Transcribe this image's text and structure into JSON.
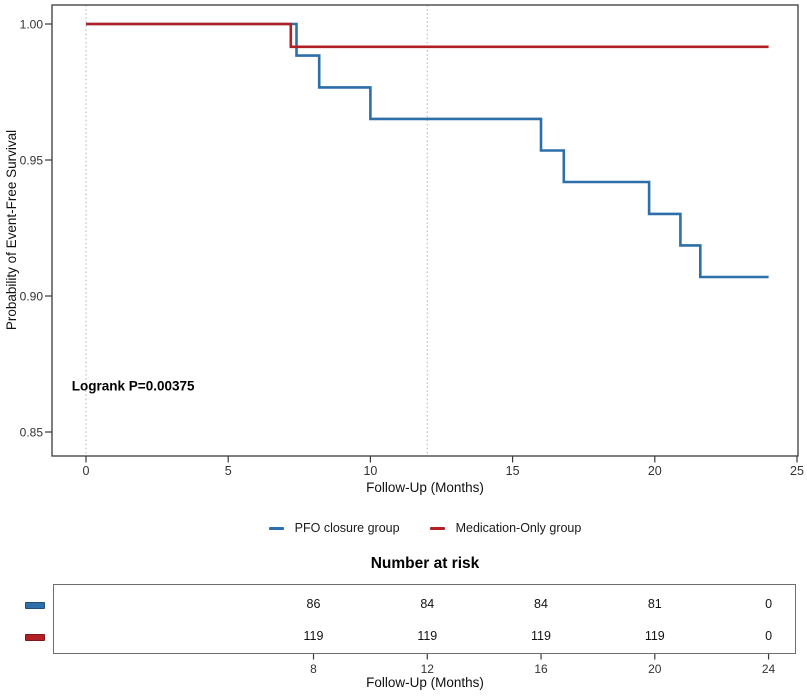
{
  "chart_data": {
    "type": "line",
    "subtype": "kaplan-meier-step",
    "title": "",
    "x_axis": {
      "title": "Follow-Up (Months)",
      "ticks": [
        0,
        5,
        10,
        15,
        20,
        25
      ],
      "range": [
        -1.2,
        25
      ]
    },
    "y_axis": {
      "title": "Probability of Event-Free Survival",
      "tick_labels": [
        "1.00",
        "0.95",
        "0.90",
        "0.85"
      ],
      "tick_values": [
        1.0,
        0.95,
        0.9,
        0.85
      ],
      "range": [
        0.843,
        1.006
      ]
    },
    "grid": false,
    "legend_position": "bottom",
    "reference_lines_x": [
      0,
      12
    ],
    "annotation": {
      "text": "Logrank P=0.00375",
      "t": -0.5,
      "s": 0.867
    },
    "series": [
      {
        "name": "PFO closure group",
        "color": "#2D6FA8",
        "steps": [
          [
            0,
            1.0
          ],
          [
            7.4,
            1.0
          ],
          [
            7.4,
            0.9884
          ],
          [
            8.2,
            0.9884
          ],
          [
            8.2,
            0.9767
          ],
          [
            10,
            0.9767
          ],
          [
            10,
            0.9651
          ],
          [
            16,
            0.9651
          ],
          [
            16,
            0.9535
          ],
          [
            16.8,
            0.9535
          ],
          [
            16.8,
            0.9419
          ],
          [
            19.8,
            0.9419
          ],
          [
            19.8,
            0.9302
          ],
          [
            20.9,
            0.9302
          ],
          [
            20.9,
            0.9186
          ],
          [
            21.6,
            0.9186
          ],
          [
            21.6,
            0.907
          ],
          [
            24,
            0.907
          ]
        ]
      },
      {
        "name": "Medication-Only group",
        "color": "#B22025",
        "steps": [
          [
            0,
            1.0
          ],
          [
            7.2,
            1.0
          ],
          [
            7.2,
            0.9916
          ],
          [
            24,
            0.9916
          ]
        ]
      }
    ]
  },
  "legend": {
    "items": [
      {
        "label": "PFO closure group",
        "color": "#2D6FA8"
      },
      {
        "label": "Medication-Only group",
        "color": "#B22025"
      }
    ]
  },
  "risk_table": {
    "title": "Number at risk",
    "time_points": [
      8,
      12,
      16,
      20,
      24
    ],
    "rows": [
      {
        "group": "PFO closure group",
        "color": "#2D6FA8",
        "values": [
          "86",
          "84",
          "84",
          "81",
          "0"
        ]
      },
      {
        "group": "Medication-Only group",
        "color": "#B22025",
        "values": [
          "119",
          "119",
          "119",
          "119",
          "0"
        ]
      }
    ],
    "axis_label": "Follow-Up (Months)"
  }
}
